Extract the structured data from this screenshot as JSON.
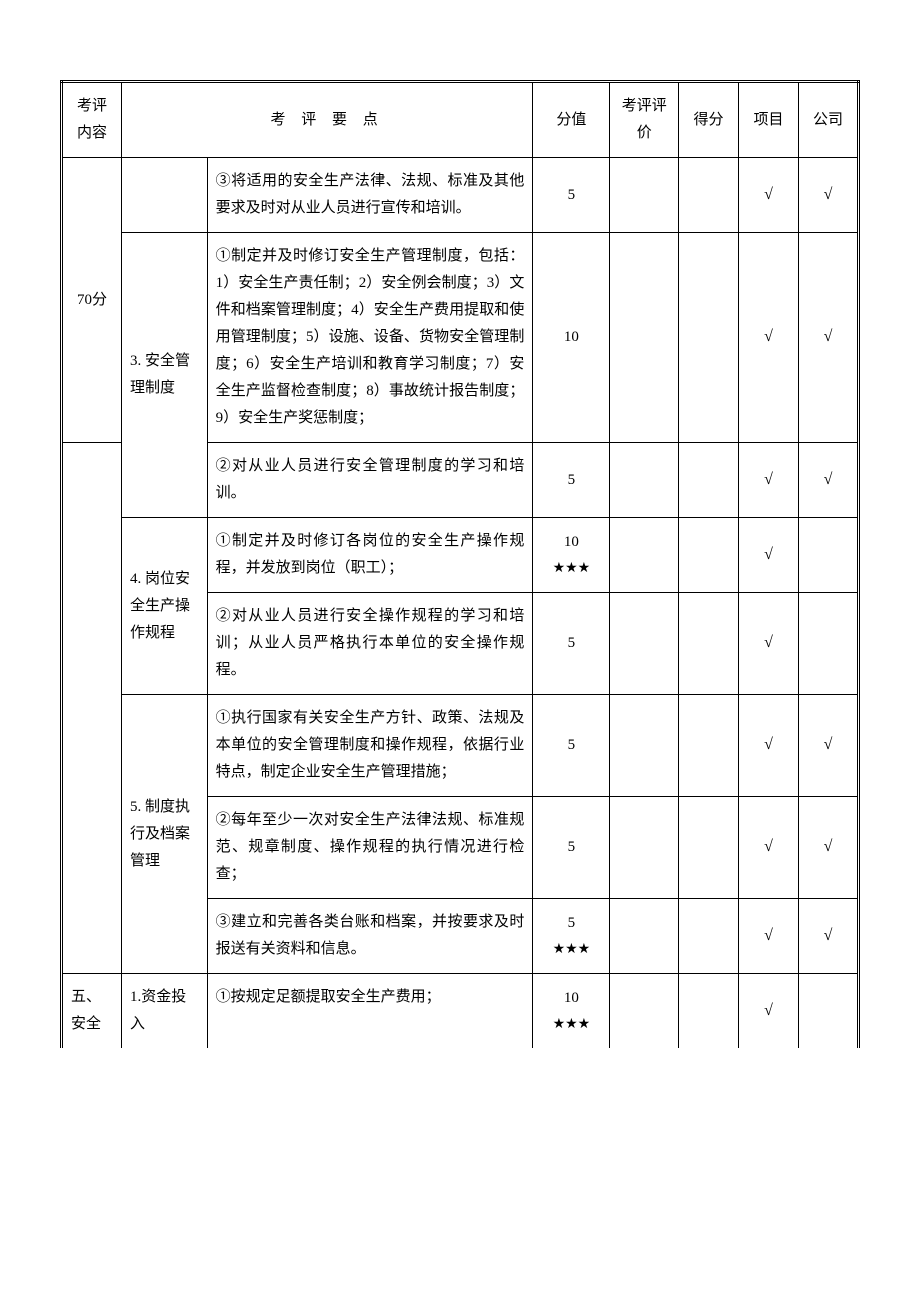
{
  "headers": {
    "content": "考评内容",
    "points_label": "考 评 要 点",
    "score": "分值",
    "eval": "考评评价",
    "defen": "得分",
    "project": "项目",
    "company": "公司"
  },
  "symbols": {
    "check": "√",
    "stars": "★★★"
  },
  "sections": {
    "s1": {
      "label": "70分",
      "sub3": {
        "label": "3. 安全管理制度"
      },
      "sub4": {
        "label": "4. 岗位安全生产操作规程"
      },
      "sub5": {
        "label": "5. 制度执行及档案管理"
      }
    },
    "s2": {
      "label_a": "五、",
      "label_b": "安全",
      "sub1": {
        "label": "1.资金投入"
      }
    }
  },
  "rows": {
    "r1": {
      "point": "③将适用的安全生产法律、法规、标准及其他要求及时对从业人员进行宣传和培训。",
      "score": "5"
    },
    "r2": {
      "point": "①制定并及时修订安全生产管理制度，包括：1）安全生产责任制；2）安全例会制度；3）文件和档案管理制度；4）安全生产费用提取和使用管理制度；5）设施、设备、货物安全管理制度；6）安全生产培训和教育学习制度；7）安全生产监督检查制度；8）事故统计报告制度；9）安全生产奖惩制度；",
      "score": "10"
    },
    "r3": {
      "point": "②对从业人员进行安全管理制度的学习和培训。",
      "score": "5"
    },
    "r4": {
      "point": "①制定并及时修订各岗位的安全生产操作规程，并发放到岗位（职工）；",
      "score": "10"
    },
    "r5": {
      "point": "②对从业人员进行安全操作规程的学习和培训；从业人员严格执行本单位的安全操作规程。",
      "score": "5"
    },
    "r6": {
      "point": "①执行国家有关安全生产方针、政策、法规及本单位的安全管理制度和操作规程，依据行业特点，制定企业安全生产管理措施；",
      "score": "5"
    },
    "r7": {
      "point": "②每年至少一次对安全生产法律法规、标准规范、规章制度、操作规程的执行情况进行检查；",
      "score": "5"
    },
    "r8": {
      "point": "③建立和完善各类台账和档案，并按要求及时报送有关资料和信息。",
      "score": "5"
    },
    "r9": {
      "point": "①按规定足额提取安全生产费用；",
      "score": "10"
    }
  }
}
